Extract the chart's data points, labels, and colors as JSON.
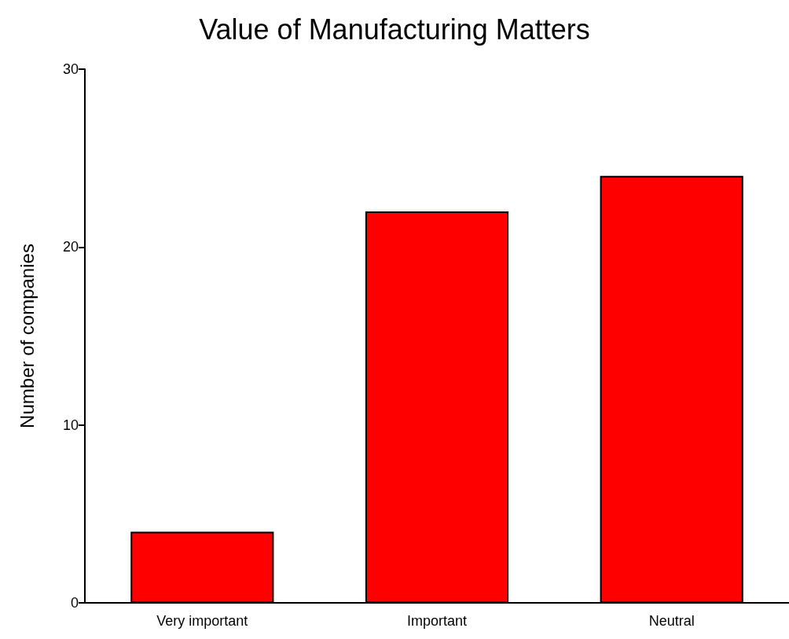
{
  "chart_data": {
    "type": "bar",
    "title": "Value of Manufacturing Matters",
    "ylabel": "Number of companies",
    "categories": [
      "Very important",
      "Important",
      "Neutral"
    ],
    "values": [
      4,
      22,
      24
    ],
    "color": "#ff0000",
    "ylim": [
      0,
      30
    ],
    "yticks": [
      0,
      10,
      20,
      30
    ],
    "grid": false
  }
}
